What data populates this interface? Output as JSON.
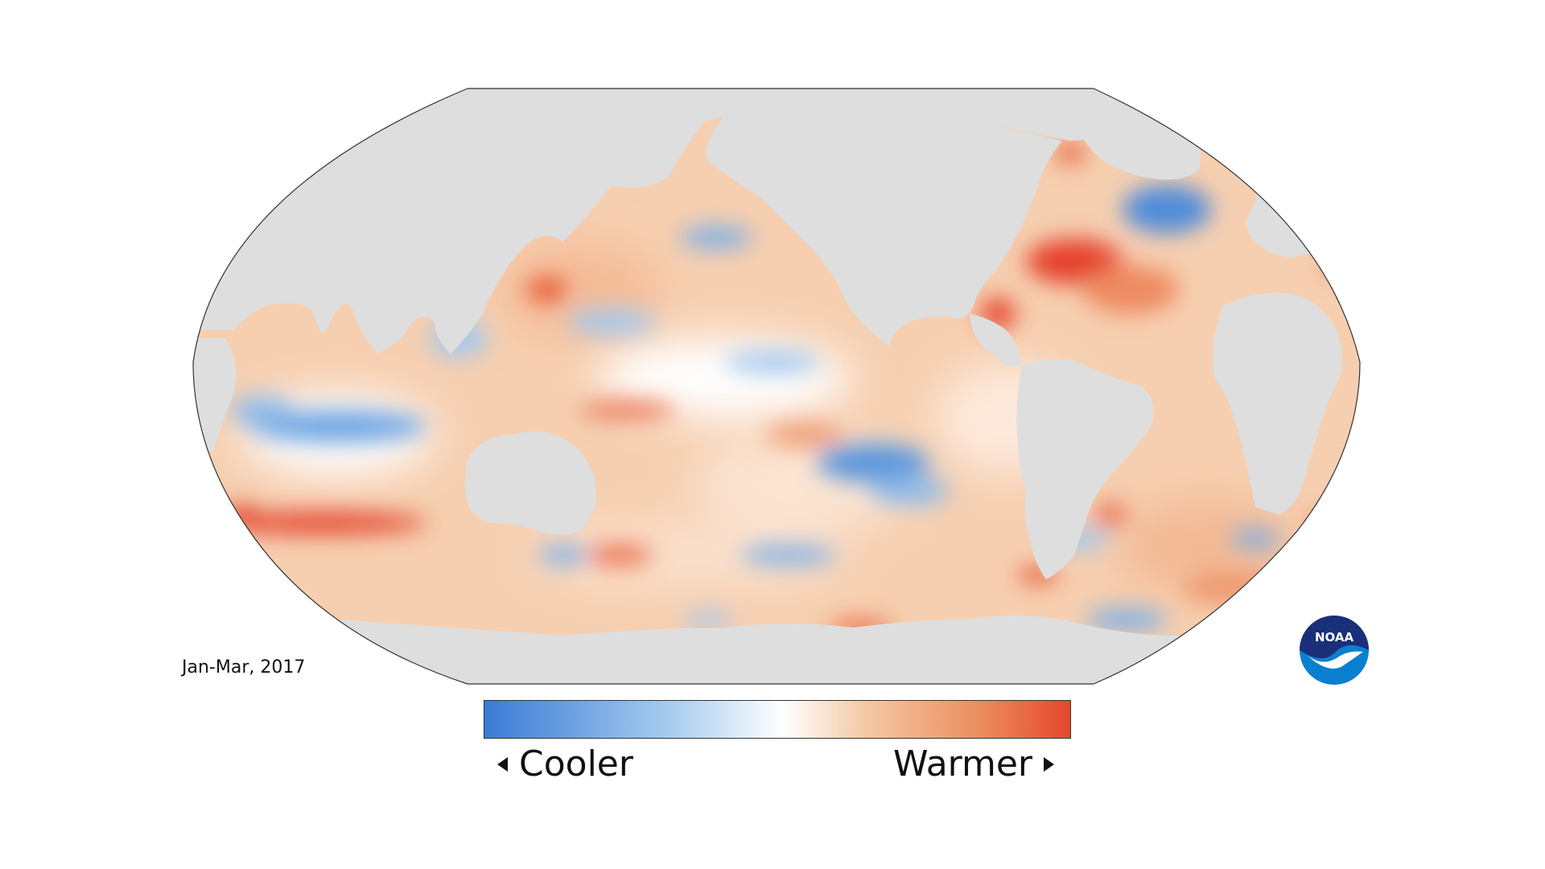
{
  "period": "Jan-Mar, 2017",
  "legend": {
    "cooler_label": "Cooler",
    "warmer_label": "Warmer",
    "colors": {
      "cooler": "#3a7ad6",
      "neutral": "#ffffff",
      "warmer": "#e5462e"
    }
  },
  "map": {
    "projection": "robinson",
    "center_meridian": "pacific",
    "land_color": "#dedede",
    "ocean_anomaly_colors": [
      "#3a7ad6",
      "#a9cdee",
      "#ffffff",
      "#f4c9a4",
      "#eb8c5c",
      "#e5462e"
    ]
  },
  "logo": {
    "text": "NOAA",
    "colors": {
      "top": "#1a2f7a",
      "bottom": "#0a7fd0"
    }
  }
}
